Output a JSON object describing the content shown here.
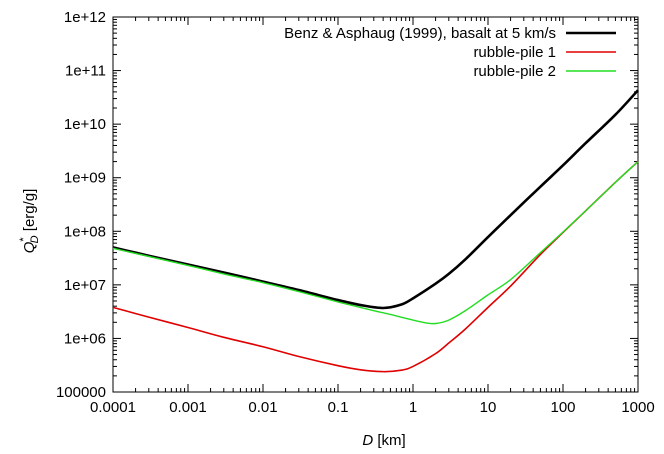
{
  "chart_data": {
    "type": "line",
    "xscale": "log",
    "yscale": "log",
    "xlim": [
      0.0001,
      1000
    ],
    "ylim": [
      100000,
      1000000000000
    ],
    "xticks": [
      0.0001,
      0.001,
      0.01,
      0.1,
      1,
      10,
      100,
      1000
    ],
    "xtick_labels": [
      "0.0001",
      "0.001",
      "0.01",
      "0.1",
      "1",
      "10",
      "100",
      "1000"
    ],
    "yticks": [
      100000,
      1000000,
      10000000,
      100000000,
      1000000000,
      10000000000,
      100000000000,
      1000000000000
    ],
    "ytick_labels": [
      "100000",
      "1e+06",
      "1e+07",
      "1e+08",
      "1e+09",
      "1e+10",
      "1e+11",
      "1e+12"
    ],
    "xlabel": {
      "var": "D",
      "unit": " [km]"
    },
    "ylabel": {
      "var": "Q",
      "sup": "*",
      "sub": "D",
      "unit": " [erg/g]"
    },
    "grid": false,
    "legend_position": "top-right",
    "series": [
      {
        "name": "Benz & Asphaug (1999), basalt at 5 km/s",
        "color": "#000000",
        "x": [
          0.0001,
          0.0003,
          0.001,
          0.003,
          0.01,
          0.03,
          0.1,
          0.2,
          0.4,
          0.7,
          1,
          2,
          3,
          5,
          10,
          20,
          50,
          100,
          200,
          500,
          1000
        ],
        "y": [
          50000000,
          35000000,
          24000000,
          17000000,
          11500000,
          8000000,
          5200000,
          4200000,
          3700000,
          4300000,
          5600000,
          10500000,
          16000000,
          30000000,
          78000000,
          200000000,
          680000000,
          1700000000,
          4400000000,
          15000000000,
          43000000000
        ]
      },
      {
        "name": "rubble-pile 1",
        "color": "#e00000",
        "x": [
          0.0001,
          0.0003,
          0.001,
          0.003,
          0.01,
          0.03,
          0.1,
          0.2,
          0.4,
          0.7,
          1,
          2,
          3,
          5,
          10,
          20,
          50,
          100,
          200,
          500,
          1000
        ],
        "y": [
          3800000,
          2500000,
          1600000,
          1050000,
          700000,
          460000,
          310000,
          260000,
          240000,
          255000,
          300000,
          520000,
          820000,
          1500000,
          3800000,
          9500000,
          37000000,
          95000000,
          240000000,
          820000000,
          2000000000
        ]
      },
      {
        "name": "rubble-pile 2",
        "color": "#22dd22",
        "x": [
          0.0001,
          0.0003,
          0.001,
          0.003,
          0.01,
          0.03,
          0.1,
          0.3,
          0.5,
          1,
          1.5,
          2,
          3,
          5,
          10,
          20,
          50,
          100,
          200,
          500,
          1000
        ],
        "y": [
          48000000,
          34000000,
          23000000,
          16000000,
          11000000,
          7500000,
          4800000,
          3300000,
          2800000,
          2200000,
          1950000,
          1900000,
          2200000,
          3300000,
          6500000,
          12500000,
          40000000,
          97000000,
          240000000,
          820000000,
          2000000000
        ]
      }
    ]
  }
}
